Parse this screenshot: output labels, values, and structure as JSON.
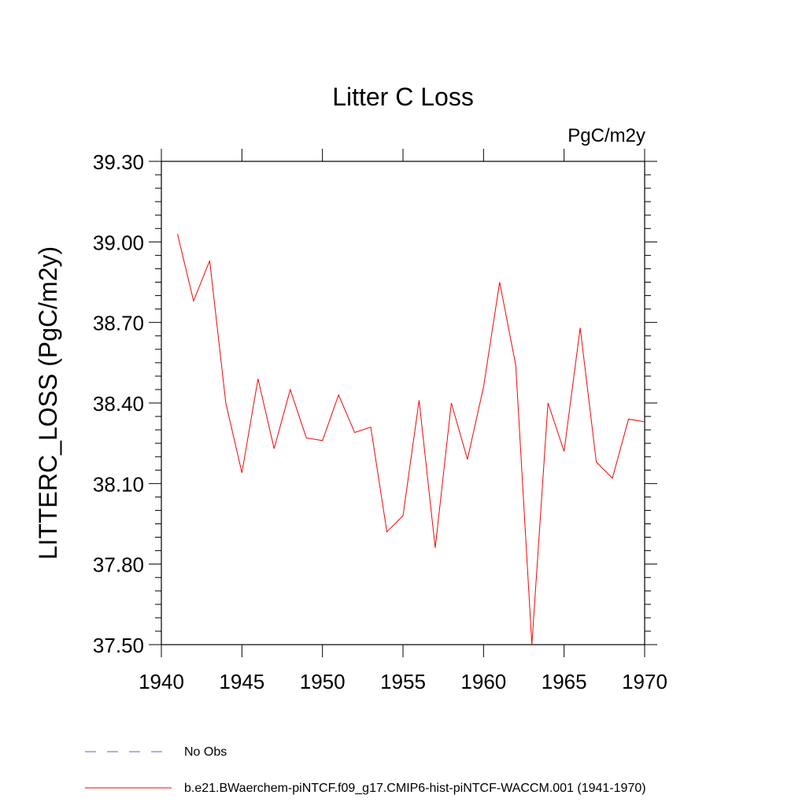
{
  "chart_data": {
    "type": "line",
    "title": "Litter C Loss",
    "units_label": "PgC/m2y",
    "ylabel": "LITTERC_LOSS  (PgC/m2y)",
    "xlabel": "",
    "xlim": [
      1940,
      1970
    ],
    "ylim": [
      37.5,
      39.3
    ],
    "x_ticks": [
      1940,
      1945,
      1950,
      1955,
      1960,
      1965,
      1970
    ],
    "x_tick_labels": [
      "1940",
      "1945",
      "1950",
      "1955",
      "1960",
      "1965",
      "1970"
    ],
    "y_ticks": [
      37.5,
      37.8,
      38.1,
      38.4,
      38.7,
      39.0,
      39.3
    ],
    "y_tick_labels": [
      "37.50",
      "37.80",
      "38.10",
      "38.40",
      "38.70",
      "39.00",
      "39.30"
    ],
    "grid": false,
    "legend_position": "bottom",
    "colors": {
      "model": "#ff0000",
      "obs": "#6a5acd"
    },
    "series": [
      {
        "name": "b.e21.BWaerchem-piNTCF.f09_g17.CMIP6-hist-piNTCF-WACCM.001 (1941-1970)",
        "color": "#ff0000",
        "x": [
          1941,
          1942,
          1943,
          1944,
          1945,
          1946,
          1947,
          1948,
          1949,
          1950,
          1951,
          1952,
          1953,
          1954,
          1955,
          1956,
          1957,
          1958,
          1959,
          1960,
          1961,
          1962,
          1963,
          1964,
          1965,
          1966,
          1967,
          1968,
          1969,
          1970
        ],
        "values": [
          39.03,
          38.78,
          38.93,
          38.4,
          38.14,
          38.49,
          38.23,
          38.45,
          38.27,
          38.26,
          38.43,
          38.29,
          38.31,
          37.92,
          37.98,
          38.41,
          37.86,
          38.4,
          38.19,
          38.46,
          38.85,
          38.54,
          37.5,
          38.4,
          38.22,
          38.68,
          38.18,
          38.12,
          38.34,
          38.33
        ]
      }
    ],
    "legend": [
      {
        "label": "No Obs",
        "style": "dashed",
        "color": "#6a5acd"
      },
      {
        "label": "b.e21.BWaerchem-piNTCF.f09_g17.CMIP6-hist-piNTCF-WACCM.001 (1941-1970)",
        "style": "solid",
        "color": "#ff0000"
      }
    ]
  }
}
